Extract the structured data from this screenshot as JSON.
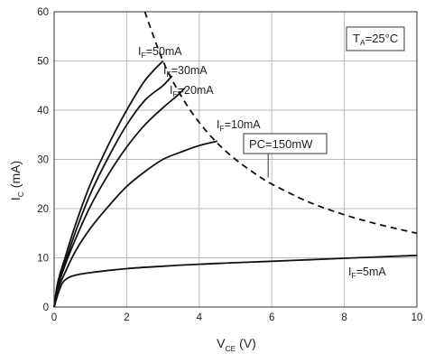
{
  "chart_data": {
    "type": "line",
    "title": "",
    "xlabel": {
      "main": "V",
      "sub": "CE",
      "unit": " (V)"
    },
    "ylabel": {
      "main": "I",
      "sub": "C",
      "unit": " (mA)"
    },
    "xlim": [
      0,
      10
    ],
    "ylim": [
      0,
      60
    ],
    "x_ticks": [
      0,
      2,
      4,
      6,
      8,
      10
    ],
    "y_ticks": [
      0,
      10,
      20,
      30,
      40,
      50,
      60
    ],
    "grid": true,
    "condition": {
      "main": "T",
      "sub": "A",
      "rest": "=25°C"
    },
    "series": [
      {
        "name": "I_F=50mA",
        "label": {
          "main": "I",
          "sub": "F",
          "rest": "=50mA"
        },
        "style": "solid",
        "points": [
          [
            0,
            0
          ],
          [
            0.1,
            5
          ],
          [
            0.3,
            10
          ],
          [
            0.6,
            17
          ],
          [
            1.0,
            25
          ],
          [
            1.5,
            33
          ],
          [
            2.0,
            40
          ],
          [
            2.5,
            46
          ],
          [
            3.0,
            50
          ]
        ]
      },
      {
        "name": "I_F=30mA",
        "label": {
          "main": "I",
          "sub": "F",
          "rest": "=30mA"
        },
        "style": "solid",
        "points": [
          [
            0,
            0
          ],
          [
            0.1,
            4.5
          ],
          [
            0.3,
            9
          ],
          [
            0.6,
            15.5
          ],
          [
            1.0,
            23
          ],
          [
            1.5,
            30.5
          ],
          [
            2.0,
            37
          ],
          [
            2.5,
            42
          ],
          [
            3.0,
            45
          ],
          [
            3.25,
            47
          ]
        ]
      },
      {
        "name": "I_F=20mA",
        "label": {
          "main": "I",
          "sub": "F",
          "rest": "=20mA"
        },
        "style": "solid",
        "points": [
          [
            0,
            0
          ],
          [
            0.1,
            4
          ],
          [
            0.3,
            8.5
          ],
          [
            0.6,
            14
          ],
          [
            1.0,
            20.5
          ],
          [
            1.5,
            27
          ],
          [
            2.0,
            32.5
          ],
          [
            2.5,
            37
          ],
          [
            3.0,
            40.5
          ],
          [
            3.4,
            43
          ],
          [
            3.6,
            44.5
          ]
        ]
      },
      {
        "name": "I_F=10mA",
        "label": {
          "main": "I",
          "sub": "F",
          "rest": "=10mA"
        },
        "style": "solid",
        "points": [
          [
            0,
            0
          ],
          [
            0.1,
            3.5
          ],
          [
            0.3,
            7
          ],
          [
            0.6,
            11.5
          ],
          [
            1.0,
            16
          ],
          [
            1.5,
            20.5
          ],
          [
            2.0,
            24.5
          ],
          [
            2.5,
            27.5
          ],
          [
            3.0,
            30
          ],
          [
            3.5,
            31.5
          ],
          [
            4.0,
            32.8
          ],
          [
            4.5,
            33.7
          ]
        ]
      },
      {
        "name": "I_F=5mA",
        "label": {
          "main": "I",
          "sub": "F",
          "rest": "=5mA"
        },
        "style": "solid",
        "points": [
          [
            0,
            0
          ],
          [
            0.1,
            2.5
          ],
          [
            0.2,
            4.5
          ],
          [
            0.3,
            5.5
          ],
          [
            0.5,
            6.3
          ],
          [
            1,
            7
          ],
          [
            2,
            7.8
          ],
          [
            3,
            8.3
          ],
          [
            4,
            8.7
          ],
          [
            5,
            9
          ],
          [
            6,
            9.3
          ],
          [
            7,
            9.6
          ],
          [
            8,
            9.9
          ],
          [
            9,
            10.2
          ],
          [
            10,
            10.5
          ]
        ]
      },
      {
        "name": "PC=150mW",
        "label": {
          "text": "PC=150mW"
        },
        "style": "dashed",
        "points": [
          [
            2.5,
            60
          ],
          [
            3,
            50
          ],
          [
            3.5,
            42.9
          ],
          [
            4,
            37.5
          ],
          [
            4.5,
            33.3
          ],
          [
            5,
            30
          ],
          [
            5.5,
            27.3
          ],
          [
            6,
            25
          ],
          [
            7,
            21.4
          ],
          [
            8,
            18.75
          ],
          [
            9,
            16.7
          ],
          [
            10,
            15
          ]
        ]
      }
    ]
  },
  "colors": {
    "line": "#111111",
    "grid": "#b9b9b9",
    "axis": "#333333",
    "background": "#ffffff"
  }
}
